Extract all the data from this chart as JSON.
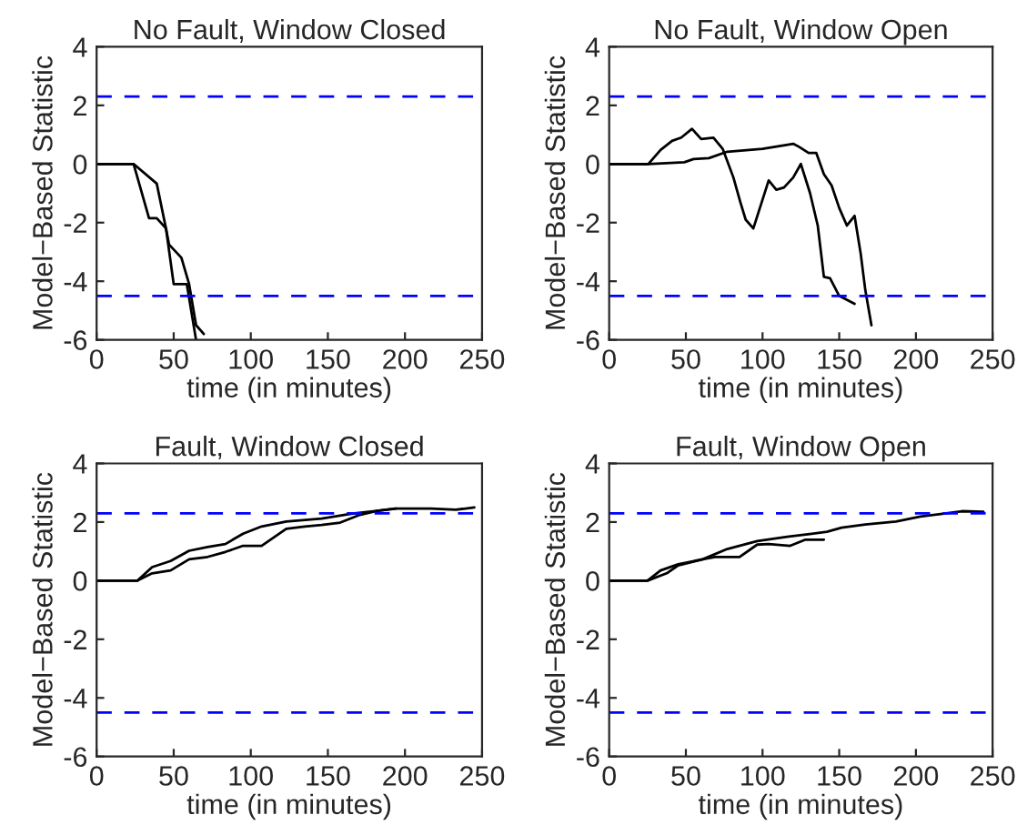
{
  "chart_data": [
    {
      "type": "line",
      "title": "No Fault, Window Closed",
      "xlabel": "time (in minutes)",
      "ylabel": "Model−Based Statistic",
      "xlim": [
        0,
        250
      ],
      "ylim": [
        -6,
        4
      ],
      "xticks": [
        0,
        50,
        100,
        150,
        200,
        250
      ],
      "yticks": [
        -6,
        -4,
        -2,
        0,
        2,
        4
      ],
      "grid": false,
      "line_style": "solid",
      "series": [
        {
          "color": "#000000",
          "x": [
            0,
            24,
            39,
            45,
            47,
            55,
            60,
            64.5,
            69.5
          ],
          "values": [
            0,
            0,
            -0.67,
            -2.2,
            -2.75,
            -3.2,
            -4.1,
            -5.5,
            -5.8
          ]
        },
        {
          "color": "#000000",
          "x": [
            0,
            24,
            34,
            39,
            45,
            50,
            58.5,
            64.5
          ],
          "values": [
            0,
            0,
            -1.85,
            -1.85,
            -2.2,
            -4.1,
            -4.1,
            -6
          ]
        }
      ],
      "ref_lines": [
        {
          "axis": "y",
          "value": 2.3,
          "color": "#0000ff",
          "line_style": "dashed"
        },
        {
          "axis": "y",
          "value": -4.5,
          "color": "#0000ff",
          "line_style": "dashed"
        }
      ]
    },
    {
      "type": "line",
      "title": "No Fault, Window Open",
      "xlabel": "time (in minutes)",
      "ylabel": "Model−Based Statistic",
      "xlim": [
        0,
        250
      ],
      "ylim": [
        -6,
        4
      ],
      "xticks": [
        0,
        50,
        100,
        150,
        200,
        250
      ],
      "yticks": [
        -6,
        -4,
        -2,
        0,
        2,
        4
      ],
      "grid": false,
      "line_style": "solid",
      "series": [
        {
          "color": "#000000",
          "x": [
            0,
            25.5,
            33.5,
            41,
            47,
            54,
            60,
            68,
            74,
            81,
            85.5,
            89,
            94,
            104,
            109,
            114,
            120,
            125,
            131,
            136,
            140,
            144,
            150,
            160
          ],
          "values": [
            0,
            0,
            0.48,
            0.79,
            0.9,
            1.2,
            0.85,
            0.9,
            0.52,
            -0.46,
            -1.3,
            -1.9,
            -2.2,
            -0.56,
            -0.88,
            -0.8,
            -0.46,
            0,
            -1.0,
            -2.1,
            -3.85,
            -3.9,
            -4.5,
            -4.77
          ]
        },
        {
          "color": "#000000",
          "x": [
            0,
            25.5,
            49,
            55,
            65,
            77,
            100,
            120,
            124,
            130,
            135,
            140,
            145,
            150,
            155,
            160,
            164,
            167,
            171
          ],
          "values": [
            0,
            0,
            0.06,
            0.17,
            0.2,
            0.42,
            0.52,
            0.69,
            0.58,
            0.38,
            0.38,
            -0.35,
            -0.73,
            -1.5,
            -2.1,
            -1.77,
            -3.06,
            -4.3,
            -5.5
          ]
        }
      ],
      "ref_lines": [
        {
          "axis": "y",
          "value": 2.3,
          "color": "#0000ff",
          "line_style": "dashed"
        },
        {
          "axis": "y",
          "value": -4.5,
          "color": "#0000ff",
          "line_style": "dashed"
        }
      ]
    },
    {
      "type": "line",
      "title": "Fault, Window Closed",
      "xlabel": "time (in minutes)",
      "ylabel": "Model−Based Statistic",
      "xlim": [
        0,
        250
      ],
      "ylim": [
        -6,
        4
      ],
      "xticks": [
        0,
        50,
        100,
        150,
        200,
        250
      ],
      "yticks": [
        -6,
        -4,
        -2,
        0,
        2,
        4
      ],
      "grid": false,
      "line_style": "solid",
      "series": [
        {
          "color": "#000000",
          "x": [
            0,
            26.5,
            36,
            48,
            60,
            72,
            83.5,
            95,
            107,
            123,
            146,
            166,
            182,
            194,
            217,
            233,
            245
          ],
          "values": [
            0,
            0,
            0.46,
            0.67,
            1.02,
            1.15,
            1.25,
            1.6,
            1.85,
            2.02,
            2.12,
            2.29,
            2.38,
            2.46,
            2.46,
            2.42,
            2.5
          ]
        },
        {
          "color": "#000000",
          "x": [
            0,
            26.5,
            36,
            48,
            60,
            72,
            83.5,
            95,
            107,
            123,
            135,
            146,
            158,
            170,
            182,
            194
          ],
          "values": [
            0,
            0,
            0.25,
            0.35,
            0.73,
            0.81,
            0.98,
            1.19,
            1.19,
            1.77,
            1.85,
            1.9,
            1.98,
            2.23,
            2.38,
            2.46
          ]
        }
      ],
      "ref_lines": [
        {
          "axis": "y",
          "value": 2.3,
          "color": "#0000ff",
          "line_style": "dashed"
        },
        {
          "axis": "y",
          "value": -4.5,
          "color": "#0000ff",
          "line_style": "dashed"
        }
      ]
    },
    {
      "type": "line",
      "title": "Fault, Window Open",
      "xlabel": "time (in minutes)",
      "ylabel": "Model−Based Statistic",
      "xlim": [
        0,
        250
      ],
      "ylim": [
        -6,
        4
      ],
      "xticks": [
        0,
        50,
        100,
        150,
        200,
        250
      ],
      "yticks": [
        -6,
        -4,
        -2,
        0,
        2,
        4
      ],
      "grid": false,
      "line_style": "solid",
      "series": [
        {
          "color": "#000000",
          "x": [
            0,
            25,
            33.5,
            45,
            61,
            77,
            96.5,
            116,
            132,
            142,
            151.5,
            167,
            187,
            203,
            218.5,
            230,
            244
          ],
          "values": [
            0,
            0,
            0.35,
            0.56,
            0.73,
            1.08,
            1.35,
            1.5,
            1.6,
            1.67,
            1.81,
            1.92,
            2.02,
            2.19,
            2.29,
            2.37,
            2.35
          ]
        },
        {
          "color": "#000000",
          "x": [
            0,
            25,
            37.5,
            45,
            61,
            69,
            85,
            96.5,
            104,
            118,
            128,
            140
          ],
          "values": [
            0,
            0,
            0.25,
            0.52,
            0.73,
            0.81,
            0.81,
            1.23,
            1.25,
            1.19,
            1.4,
            1.4
          ]
        }
      ],
      "ref_lines": [
        {
          "axis": "y",
          "value": 2.3,
          "color": "#0000ff",
          "line_style": "dashed"
        },
        {
          "axis": "y",
          "value": -4.5,
          "color": "#0000ff",
          "line_style": "dashed"
        }
      ]
    }
  ]
}
